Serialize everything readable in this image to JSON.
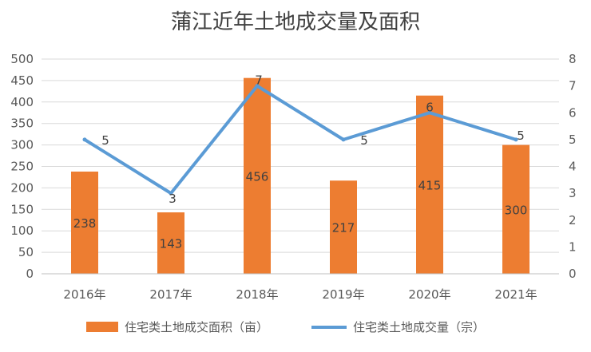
{
  "chart_data": {
    "type": "bar",
    "title": "蒲江近年土地成交量及面积",
    "categories": [
      "2016年",
      "2017年",
      "2018年",
      "2019年",
      "2020年",
      "2021年"
    ],
    "series": [
      {
        "name": "住宅类土地成交面积（亩）",
        "type": "bar",
        "axis": "left",
        "color": "#ED7D31",
        "values": [
          238,
          143,
          456,
          217,
          415,
          300
        ]
      },
      {
        "name": "住宅类土地成交量（宗）",
        "type": "line",
        "axis": "right",
        "color": "#5B9BD5",
        "values": [
          5,
          3,
          7,
          5,
          6,
          5
        ]
      }
    ],
    "y_left": {
      "min": 0,
      "max": 500,
      "step": 50,
      "ticks": [
        "0",
        "50",
        "100",
        "150",
        "200",
        "250",
        "300",
        "350",
        "400",
        "450",
        "500"
      ]
    },
    "y_right": {
      "min": 0,
      "max": 8,
      "step": 1,
      "ticks": [
        "0",
        "1",
        "2",
        "3",
        "4",
        "5",
        "6",
        "7",
        "8"
      ]
    },
    "grid": true,
    "legend_position": "bottom"
  }
}
